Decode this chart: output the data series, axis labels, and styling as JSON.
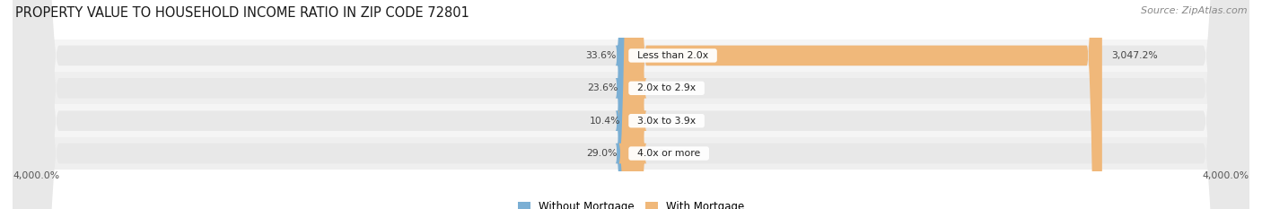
{
  "title": "PROPERTY VALUE TO HOUSEHOLD INCOME RATIO IN ZIP CODE 72801",
  "source": "Source: ZipAtlas.com",
  "categories": [
    "Less than 2.0x",
    "2.0x to 2.9x",
    "3.0x to 3.9x",
    "4.0x or more"
  ],
  "without_mortgage": [
    33.6,
    23.6,
    10.4,
    29.0
  ],
  "with_mortgage": [
    3047.2,
    44.4,
    16.1,
    21.2
  ],
  "color_without": "#7bafd4",
  "color_with": "#f0b87a",
  "axis_max": 4000.0,
  "axis_label_left": "4,000.0%",
  "axis_label_right": "4,000.0%",
  "legend_without": "Without Mortgage",
  "legend_with": "With Mortgage",
  "background_bar": "#e8e8e8",
  "background_row_alt": "#f0f0f0",
  "background_fig": "#ffffff",
  "title_fontsize": 10.5,
  "source_fontsize": 8,
  "bar_height": 0.62,
  "label_box_color": "#ffffff"
}
